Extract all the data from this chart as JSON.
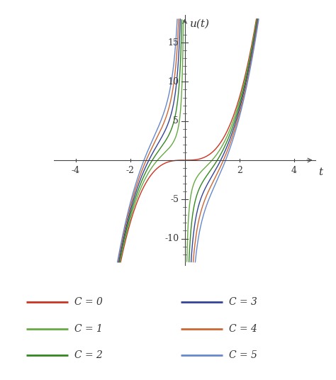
{
  "xlim": [
    -4.8,
    4.8
  ],
  "ylim": [
    -13.5,
    18.5
  ],
  "xticks": [
    -4,
    -2,
    2,
    4
  ],
  "yticks": [
    -10,
    -5,
    5,
    10,
    15
  ],
  "curves": [
    {
      "C": 0,
      "color": "#cc3322",
      "label": "C = 0"
    },
    {
      "C": 1,
      "color": "#66aa44",
      "label": "C = 1"
    },
    {
      "C": 2,
      "color": "#338822",
      "label": "C = 2"
    },
    {
      "C": 3,
      "color": "#334499",
      "label": "C = 3"
    },
    {
      "C": 4,
      "color": "#cc6633",
      "label": "C = 4"
    },
    {
      "C": 5,
      "color": "#6688cc",
      "label": "C = 5"
    }
  ],
  "clip_high": 18,
  "clip_low": -13,
  "background_color": "#ffffff",
  "axis_color": "#444444",
  "label_x": "t",
  "label_y": "u(t)",
  "formula": "t^3 - C/t"
}
